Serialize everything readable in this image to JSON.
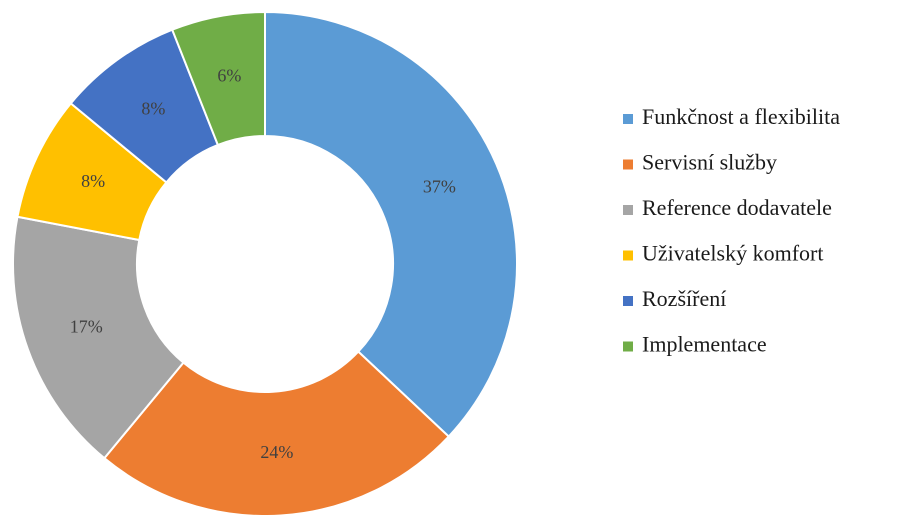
{
  "chart_data": {
    "type": "donut",
    "categories": [
      "Funkčnost a flexibilita",
      "Servisní služby",
      "Reference dodavatele",
      "Uživatelský komfort",
      "Rozšíření",
      "Implementace"
    ],
    "values": [
      37,
      24,
      17,
      8,
      8,
      6
    ],
    "value_labels": [
      "37%",
      "24%",
      "17%",
      "8%",
      "8%",
      "6%"
    ],
    "colors": [
      "#5b9bd5",
      "#ed7d31",
      "#a5a5a5",
      "#ffc000",
      "#4472c4",
      "#70ad47"
    ],
    "legend": "right"
  }
}
